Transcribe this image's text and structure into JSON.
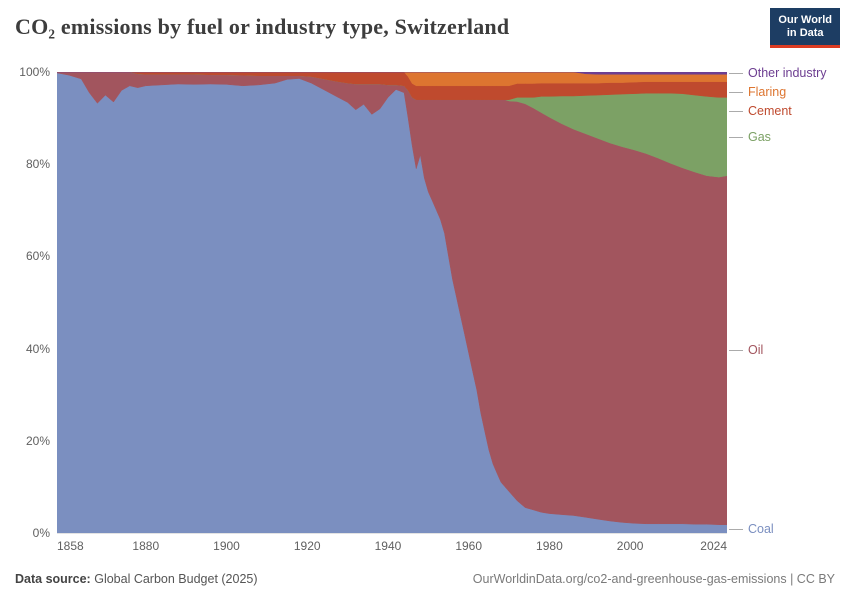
{
  "header": {
    "title": "CO₂ emissions by fuel or industry type, Switzerland",
    "logo": {
      "line1": "Our World",
      "line2": "in Data"
    }
  },
  "chart_data": {
    "type": "area",
    "stacked": true,
    "unit": "percent-share",
    "title": "CO₂ emissions by fuel or industry type, Switzerland",
    "x_range": [
      1858,
      2024
    ],
    "ylim": [
      0,
      100
    ],
    "grid": true,
    "legend_position": "right",
    "legend_order_top_to_bottom": [
      "Other industry",
      "Flaring",
      "Cement",
      "Gas",
      "Oil",
      "Coal"
    ],
    "ytick_values": [
      0,
      20,
      40,
      60,
      80,
      100
    ],
    "ytick_labels": [
      "0%",
      "20%",
      "40%",
      "60%",
      "80%",
      "100%"
    ],
    "xticks": [
      1858,
      1880,
      1900,
      1920,
      1940,
      1960,
      1980,
      2000,
      2024
    ],
    "series": [
      {
        "name": "Coal",
        "color": "#7b8fc0"
      },
      {
        "name": "Oil",
        "color": "#a2555e"
      },
      {
        "name": "Gas",
        "color": "#7ca165"
      },
      {
        "name": "Cement",
        "color": "#bf4a2e"
      },
      {
        "name": "Flaring",
        "color": "#dd7530"
      },
      {
        "name": "Other industry",
        "color": "#6d3e91"
      }
    ],
    "columns": [
      "year",
      "Coal",
      "Oil",
      "Gas",
      "Cement",
      "Flaring",
      "Other industry"
    ],
    "rows": [
      [
        1858,
        99.8,
        0.2,
        0,
        0,
        0,
        0
      ],
      [
        1861,
        99.3,
        0.7,
        0,
        0,
        0,
        0
      ],
      [
        1864,
        98.5,
        1.5,
        0,
        0,
        0,
        0
      ],
      [
        1866,
        95.5,
        4.5,
        0,
        0,
        0,
        0
      ],
      [
        1868,
        93.2,
        6.8,
        0,
        0,
        0,
        0
      ],
      [
        1870,
        95.0,
        5.0,
        0,
        0,
        0,
        0
      ],
      [
        1872,
        93.5,
        6.5,
        0,
        0,
        0,
        0
      ],
      [
        1874,
        96.0,
        4.0,
        0,
        0,
        0,
        0
      ],
      [
        1876,
        97.0,
        3.0,
        0,
        0,
        0,
        0
      ],
      [
        1878,
        96.6,
        3.0,
        0,
        0.4,
        0,
        0
      ],
      [
        1880,
        97.0,
        2.5,
        0,
        0.5,
        0,
        0
      ],
      [
        1884,
        97.2,
        2.3,
        0,
        0.5,
        0,
        0
      ],
      [
        1888,
        97.4,
        2.1,
        0,
        0.5,
        0,
        0
      ],
      [
        1892,
        97.3,
        2.2,
        0,
        0.5,
        0,
        0
      ],
      [
        1896,
        97.4,
        2.0,
        0,
        0.6,
        0,
        0
      ],
      [
        1900,
        97.3,
        2.1,
        0,
        0.6,
        0,
        0
      ],
      [
        1904,
        97.0,
        2.3,
        0,
        0.7,
        0,
        0
      ],
      [
        1908,
        97.2,
        2.0,
        0,
        0.8,
        0,
        0
      ],
      [
        1912,
        97.6,
        1.6,
        0,
        0.8,
        0,
        0
      ],
      [
        1915,
        98.4,
        0.8,
        0,
        0.8,
        0,
        0
      ],
      [
        1918,
        98.6,
        0.6,
        0,
        0.8,
        0,
        0
      ],
      [
        1921,
        97.6,
        1.4,
        0,
        1.0,
        0,
        0
      ],
      [
        1924,
        96.2,
        2.3,
        0,
        1.5,
        0,
        0
      ],
      [
        1927,
        94.8,
        3.2,
        0,
        2.0,
        0,
        0
      ],
      [
        1930,
        93.4,
        4.2,
        0,
        2.4,
        0,
        0
      ],
      [
        1932,
        91.8,
        5.6,
        0,
        2.6,
        0,
        0
      ],
      [
        1934,
        93.0,
        4.4,
        0,
        2.6,
        0,
        0
      ],
      [
        1936,
        90.8,
        6.6,
        0,
        2.6,
        0,
        0
      ],
      [
        1938,
        92.0,
        5.4,
        0,
        2.6,
        0,
        0
      ],
      [
        1940,
        94.5,
        2.7,
        0,
        2.8,
        0,
        0
      ],
      [
        1942,
        96.2,
        1.0,
        0,
        2.8,
        0,
        0
      ],
      [
        1944,
        95.5,
        1.5,
        0,
        3.0,
        0,
        0
      ],
      [
        1945,
        90.0,
        6.0,
        0,
        3.0,
        1.0,
        0
      ],
      [
        1946,
        84.0,
        10.5,
        0,
        3.0,
        2.5,
        0
      ],
      [
        1947,
        79.0,
        15.0,
        0,
        3.0,
        3.0,
        0
      ],
      [
        1948,
        82.0,
        12.0,
        0,
        3.0,
        3.0,
        0
      ],
      [
        1949,
        77.0,
        17.0,
        0,
        3.0,
        3.0,
        0
      ],
      [
        1950,
        74.0,
        20.0,
        0,
        3.0,
        3.0,
        0
      ],
      [
        1951,
        72.0,
        22.0,
        0,
        3.0,
        3.0,
        0
      ],
      [
        1952,
        70.0,
        24.0,
        0,
        3.0,
        3.0,
        0
      ],
      [
        1953,
        68.0,
        26.0,
        0,
        3.0,
        3.0,
        0
      ],
      [
        1954,
        65.0,
        29.0,
        0,
        3.0,
        3.0,
        0
      ],
      [
        1955,
        60.0,
        34.0,
        0,
        3.0,
        3.0,
        0
      ],
      [
        1956,
        55.0,
        39.0,
        0,
        3.0,
        3.0,
        0
      ],
      [
        1957,
        51.0,
        43.0,
        0,
        3.0,
        3.0,
        0
      ],
      [
        1958,
        47.0,
        47.0,
        0,
        3.0,
        3.0,
        0
      ],
      [
        1959,
        43.0,
        51.0,
        0,
        3.0,
        3.0,
        0
      ],
      [
        1960,
        39.0,
        55.0,
        0,
        3.0,
        3.0,
        0
      ],
      [
        1961,
        35.0,
        59.0,
        0,
        3.0,
        3.0,
        0
      ],
      [
        1962,
        31.0,
        63.0,
        0,
        3.0,
        3.0,
        0
      ],
      [
        1963,
        26.0,
        68.0,
        0,
        3.0,
        3.0,
        0
      ],
      [
        1964,
        22.0,
        72.0,
        0,
        3.0,
        3.0,
        0
      ],
      [
        1965,
        18.0,
        76.0,
        0,
        3.0,
        3.0,
        0
      ],
      [
        1966,
        15.0,
        79.0,
        0,
        3.0,
        3.0,
        0
      ],
      [
        1967,
        13.0,
        81.0,
        0,
        3.0,
        3.0,
        0
      ],
      [
        1968,
        11.0,
        83.0,
        0,
        3.0,
        3.0,
        0
      ],
      [
        1969,
        10.0,
        84.0,
        0,
        3.0,
        3.0,
        0
      ],
      [
        1970,
        9.0,
        84.7,
        0.3,
        3.0,
        3.0,
        0
      ],
      [
        1972,
        7.0,
        86.6,
        0.9,
        3.0,
        2.5,
        0
      ],
      [
        1974,
        5.5,
        87.6,
        1.4,
        3.0,
        2.5,
        0
      ],
      [
        1976,
        5.0,
        87.2,
        2.3,
        3.0,
        2.5,
        0
      ],
      [
        1978,
        4.5,
        86.7,
        3.5,
        2.9,
        2.4,
        0
      ],
      [
        1980,
        4.2,
        86.0,
        4.5,
        2.9,
        2.4,
        0
      ],
      [
        1983,
        4.0,
        84.8,
        6.0,
        2.8,
        2.4,
        0
      ],
      [
        1986,
        3.8,
        83.8,
        7.2,
        2.8,
        2.4,
        0
      ],
      [
        1989,
        3.4,
        83.2,
        8.3,
        2.7,
        2.0,
        0.4
      ],
      [
        1992,
        3.0,
        82.6,
        9.4,
        2.6,
        1.9,
        0.5
      ],
      [
        1995,
        2.6,
        82.0,
        10.5,
        2.6,
        1.8,
        0.5
      ],
      [
        1998,
        2.3,
        81.5,
        11.4,
        2.5,
        1.8,
        0.5
      ],
      [
        2001,
        2.1,
        81.0,
        12.2,
        2.5,
        1.7,
        0.5
      ],
      [
        2004,
        2.0,
        80.3,
        13.1,
        2.5,
        1.6,
        0.5
      ],
      [
        2007,
        2.0,
        79.3,
        14.1,
        2.5,
        1.6,
        0.5
      ],
      [
        2010,
        2.0,
        78.2,
        15.2,
        2.5,
        1.6,
        0.5
      ],
      [
        2013,
        2.0,
        77.2,
        16.1,
        2.6,
        1.6,
        0.5
      ],
      [
        2016,
        1.9,
        76.4,
        16.7,
        2.9,
        1.6,
        0.5
      ],
      [
        2019,
        1.9,
        75.6,
        17.2,
        3.2,
        1.6,
        0.5
      ],
      [
        2022,
        1.8,
        75.4,
        17.3,
        3.4,
        1.6,
        0.5
      ],
      [
        2024,
        1.8,
        75.7,
        17.0,
        3.4,
        1.6,
        0.5
      ]
    ]
  },
  "footer": {
    "source_label": "Data source:",
    "source_value": "Global Carbon Budget (2025)",
    "credit": "OurWorldinData.org/co2-and-greenhouse-gas-emissions | CC BY"
  }
}
